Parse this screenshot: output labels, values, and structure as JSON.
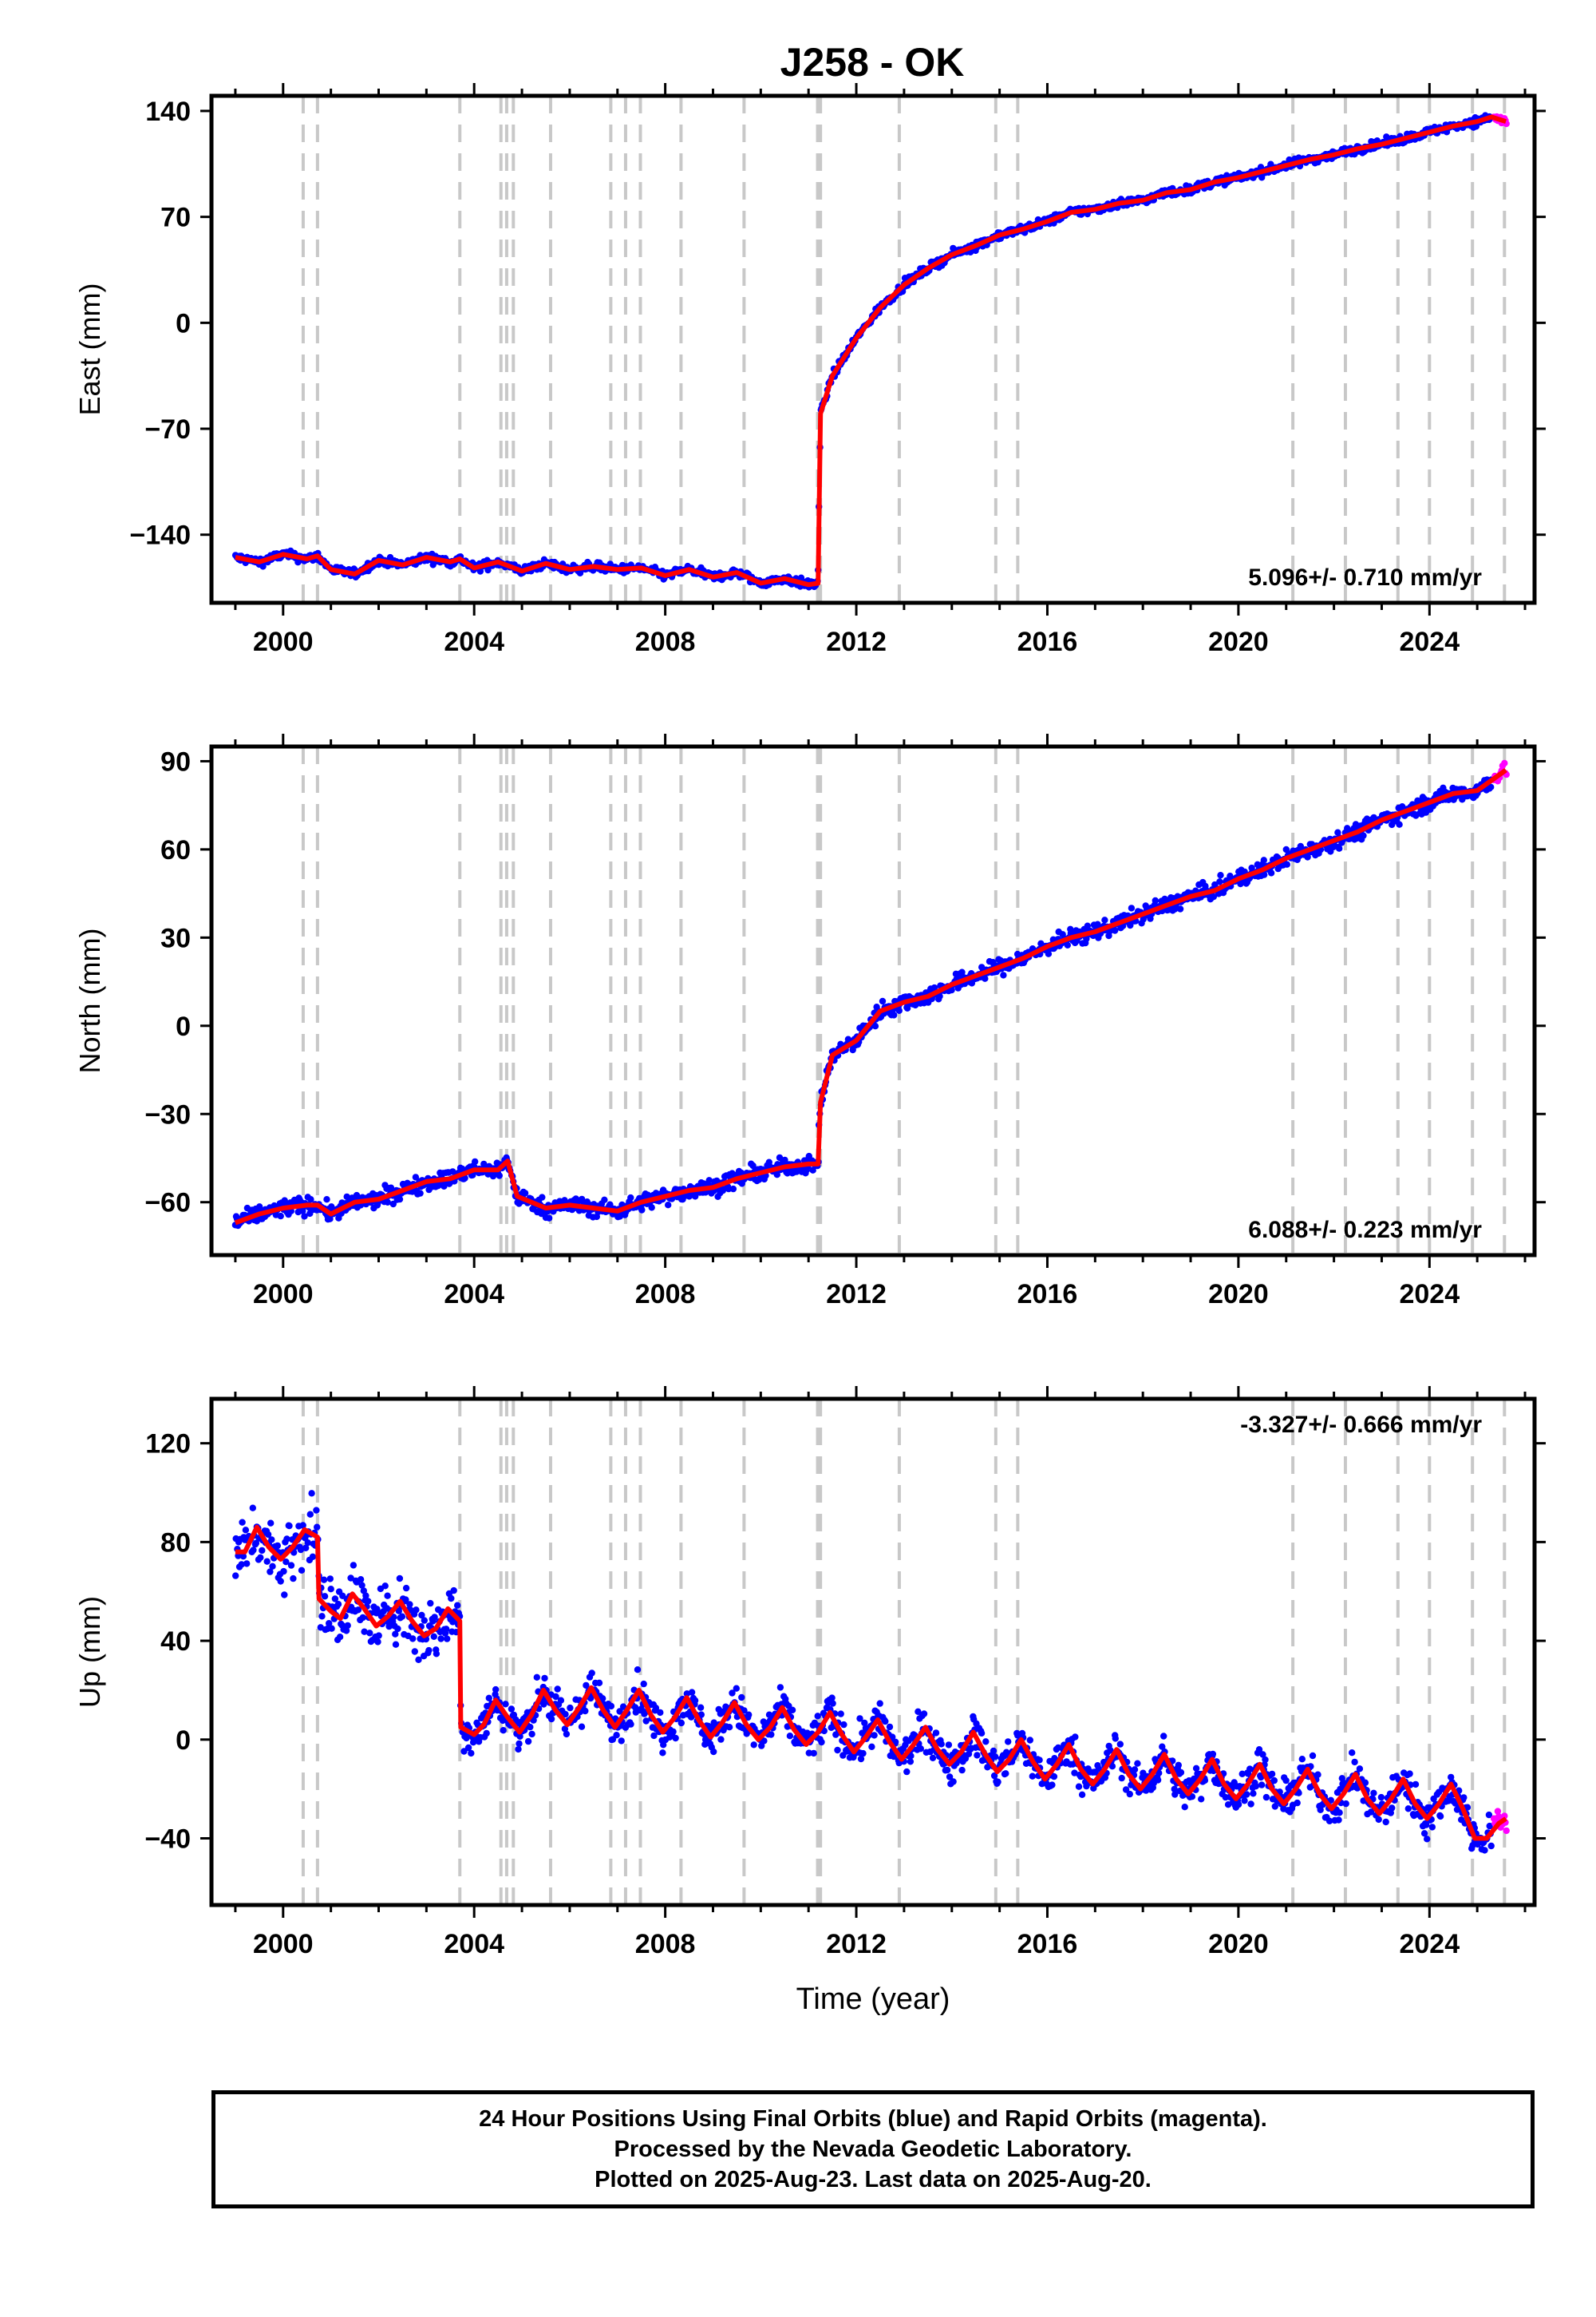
{
  "title": "J258 - OK",
  "colors": {
    "final_orbits": "#0000ff",
    "rapid_orbits": "#ff00ff",
    "model": "#ff0000",
    "events": "#c8c8c8"
  },
  "event_lines_year": [
    2000.42,
    2000.72,
    2003.7,
    2004.56,
    2004.68,
    2004.82,
    2005.6,
    2006.86,
    2007.17,
    2007.48,
    2008.33,
    2009.65,
    2011.19,
    2011.25,
    2012.9,
    2014.92,
    2015.38,
    2021.14,
    2022.24,
    2023.34,
    2024.0,
    2024.9,
    2025.57
  ],
  "chart_data": [
    {
      "type": "scatter",
      "panel": "east",
      "ylabel": "East (mm)",
      "xlabel": "",
      "xlim": [
        1998.5,
        2026.2
      ],
      "ylim": [
        -185,
        150
      ],
      "yticks": [
        "140",
        "70",
        "0",
        "−70",
        "−140"
      ],
      "ytick_values": [
        140,
        70,
        0,
        -70,
        -140
      ],
      "xticks": [
        "2000",
        "2004",
        "2008",
        "2012",
        "2016",
        "2020",
        "2024"
      ],
      "xtick_values": [
        2000,
        2004,
        2008,
        2012,
        2016,
        2020,
        2024
      ],
      "rate_label": "5.096+/- 0.710 mm/yr",
      "series": [
        {
          "role": "model",
          "x": [
            1999.0,
            1999.5,
            2000.0,
            2000.5,
            2000.72,
            2001.0,
            2001.5,
            2002.0,
            2002.5,
            2003.0,
            2003.5,
            2003.7,
            2004.0,
            2004.5,
            2005.0,
            2005.5,
            2006.0,
            2006.5,
            2007.0,
            2007.5,
            2008.0,
            2008.5,
            2009.0,
            2009.5,
            2010.0,
            2010.5,
            2011.0,
            2011.2,
            2011.25,
            2011.5,
            2012.0,
            2012.5,
            2013.0,
            2013.5,
            2014.0,
            2014.5,
            2015.0,
            2015.5,
            2016.0,
            2016.5,
            2017.0,
            2017.5,
            2018.0,
            2018.5,
            2019.0,
            2019.5,
            2020.0,
            2020.5,
            2021.0,
            2021.5,
            2022.0,
            2022.5,
            2023.0,
            2023.5,
            2024.0,
            2024.5,
            2025.0,
            2025.3,
            2025.6
          ],
          "y": [
            -155,
            -158,
            -153,
            -156,
            -154,
            -163,
            -166,
            -157,
            -160,
            -155,
            -158,
            -156,
            -162,
            -158,
            -164,
            -159,
            -163,
            -161,
            -163,
            -162,
            -167,
            -163,
            -168,
            -165,
            -172,
            -169,
            -173,
            -172,
            -60,
            -35,
            -10,
            10,
            25,
            36,
            45,
            51,
            58,
            62,
            67,
            73,
            75,
            79,
            81,
            86,
            88,
            93,
            96,
            100,
            104,
            108,
            111,
            115,
            118,
            122,
            126,
            130,
            133,
            136,
            133
          ]
        }
      ]
    },
    {
      "type": "scatter",
      "panel": "north",
      "ylabel": "North (mm)",
      "xlabel": "",
      "xlim": [
        1998.5,
        2026.2
      ],
      "ylim": [
        -78,
        95
      ],
      "yticks": [
        "90",
        "60",
        "30",
        "0",
        "−30",
        "−60"
      ],
      "ytick_values": [
        90,
        60,
        30,
        0,
        -30,
        -60
      ],
      "xticks": [
        "2000",
        "2004",
        "2008",
        "2012",
        "2016",
        "2020",
        "2024"
      ],
      "xtick_values": [
        2000,
        2004,
        2008,
        2012,
        2016,
        2020,
        2024
      ],
      "rate_label": "6.088+/- 0.223 mm/yr",
      "series": [
        {
          "role": "model",
          "x": [
            1999.0,
            1999.5,
            2000.0,
            2000.5,
            2000.72,
            2001.0,
            2001.5,
            2002.0,
            2002.5,
            2003.0,
            2003.5,
            2004.0,
            2004.5,
            2004.7,
            2004.9,
            2005.5,
            2006.0,
            2006.5,
            2007.0,
            2007.5,
            2008.0,
            2008.5,
            2009.0,
            2009.5,
            2010.0,
            2010.5,
            2011.0,
            2011.2,
            2011.25,
            2011.5,
            2012.0,
            2012.5,
            2013.0,
            2013.5,
            2014.0,
            2014.5,
            2015.0,
            2015.5,
            2016.0,
            2016.5,
            2017.0,
            2017.5,
            2018.0,
            2018.5,
            2019.0,
            2019.5,
            2020.0,
            2020.5,
            2021.0,
            2021.5,
            2022.0,
            2022.5,
            2023.0,
            2023.5,
            2024.0,
            2024.5,
            2025.0,
            2025.6
          ],
          "y": [
            -67,
            -64,
            -62,
            -61,
            -61,
            -64,
            -60,
            -59,
            -56,
            -53,
            -52,
            -49,
            -49,
            -46,
            -58,
            -62,
            -61,
            -62,
            -63,
            -60,
            -58,
            -56,
            -55,
            -52,
            -50,
            -48,
            -47,
            -47,
            -26,
            -10,
            -5,
            5,
            8,
            10,
            14,
            17,
            20,
            23,
            27,
            30,
            32,
            35,
            38,
            41,
            44,
            46,
            50,
            53,
            57,
            60,
            63,
            66,
            70,
            73,
            76,
            79,
            80,
            87
          ]
        }
      ]
    },
    {
      "type": "scatter",
      "panel": "up",
      "ylabel": "Up (mm)",
      "xlabel": "Time (year)",
      "xlim": [
        1998.5,
        2026.2
      ],
      "ylim": [
        -67,
        138
      ],
      "yticks": [
        "120",
        "80",
        "40",
        "0",
        "−40"
      ],
      "ytick_values": [
        120,
        80,
        40,
        0,
        -40
      ],
      "xticks": [
        "2000",
        "2004",
        "2008",
        "2012",
        "2016",
        "2020",
        "2024"
      ],
      "xtick_values": [
        2000,
        2004,
        2008,
        2012,
        2016,
        2020,
        2024
      ],
      "rate_label": "-3.327+/- 0.666 mm/yr",
      "series": [
        {
          "role": "model",
          "x": [
            1999.0,
            1999.2,
            1999.45,
            1999.7,
            1999.95,
            2000.2,
            2000.45,
            2000.72,
            2000.75,
            2001.0,
            2001.2,
            2001.45,
            2001.7,
            2001.95,
            2002.2,
            2002.45,
            2002.7,
            2002.95,
            2003.2,
            2003.45,
            2003.7,
            2003.72,
            2004.0,
            2004.2,
            2004.45,
            2004.7,
            2004.95,
            2005.2,
            2005.45,
            2005.7,
            2005.95,
            2006.2,
            2006.45,
            2006.7,
            2006.95,
            2007.2,
            2007.45,
            2007.7,
            2007.95,
            2008.2,
            2008.45,
            2008.7,
            2008.95,
            2009.2,
            2009.45,
            2009.7,
            2009.95,
            2010.2,
            2010.45,
            2010.7,
            2010.95,
            2011.2,
            2011.45,
            2011.7,
            2011.95,
            2012.2,
            2012.45,
            2012.7,
            2012.95,
            2013.2,
            2013.45,
            2013.7,
            2013.95,
            2014.2,
            2014.45,
            2014.7,
            2014.95,
            2015.2,
            2015.45,
            2015.7,
            2015.95,
            2016.2,
            2016.45,
            2016.7,
            2016.95,
            2017.2,
            2017.45,
            2017.7,
            2017.95,
            2018.2,
            2018.45,
            2018.7,
            2018.95,
            2019.2,
            2019.45,
            2019.7,
            2019.95,
            2020.2,
            2020.45,
            2020.7,
            2020.95,
            2021.2,
            2021.45,
            2021.7,
            2021.95,
            2022.2,
            2022.45,
            2022.7,
            2022.95,
            2023.2,
            2023.45,
            2023.7,
            2023.95,
            2024.2,
            2024.45,
            2024.7,
            2024.95,
            2025.2,
            2025.45,
            2025.6
          ],
          "y": [
            76,
            76,
            86,
            78,
            73,
            78,
            85,
            82,
            57,
            52,
            49,
            59,
            53,
            46,
            50,
            56,
            48,
            42,
            45,
            53,
            48,
            5,
            2,
            6,
            16,
            9,
            3,
            10,
            20,
            12,
            6,
            13,
            21,
            12,
            5,
            12,
            20,
            10,
            3,
            9,
            17,
            8,
            1,
            7,
            15,
            6,
            0,
            5,
            13,
            4,
            -2,
            3,
            11,
            2,
            -5,
            1,
            8,
            -1,
            -8,
            -2,
            5,
            -4,
            -10,
            -5,
            3,
            -6,
            -13,
            -8,
            0,
            -9,
            -16,
            -10,
            -2,
            -12,
            -18,
            -12,
            -4,
            -14,
            -20,
            -14,
            -6,
            -16,
            -22,
            -16,
            -8,
            -18,
            -24,
            -18,
            -10,
            -20,
            -26,
            -20,
            -12,
            -22,
            -28,
            -22,
            -14,
            -24,
            -30,
            -24,
            -16,
            -26,
            -32,
            -26,
            -18,
            -28,
            -40,
            -40,
            -34,
            -32
          ]
        }
      ]
    }
  ],
  "footer": {
    "line1": "24 Hour Positions Using Final Orbits (blue) and Rapid Orbits (magenta).",
    "line2": "Processed by the Nevada Geodetic Laboratory.",
    "line3": "Plotted on 2025-Aug-23. Last data on 2025-Aug-20."
  }
}
